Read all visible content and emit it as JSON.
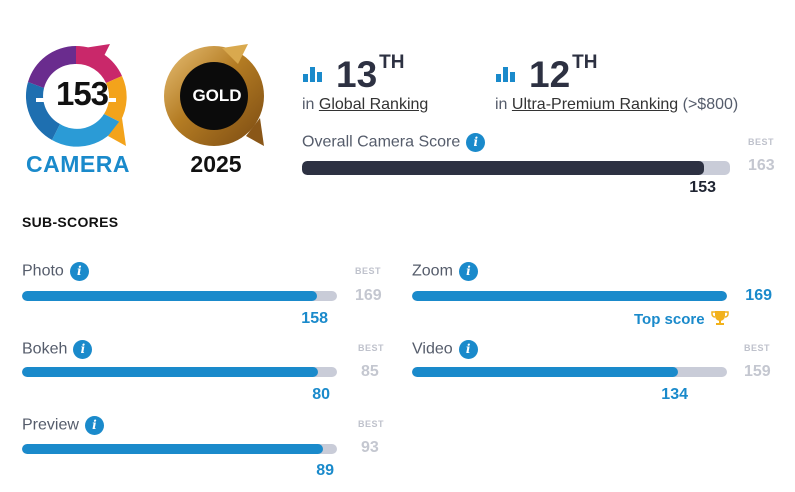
{
  "badge": {
    "camera_score": "153",
    "camera_label": "CAMERA",
    "award_label": "GOLD",
    "award_year": "2025"
  },
  "rankings": [
    {
      "number": "13",
      "suffix": "TH",
      "prefix": "in",
      "link": "Global Ranking",
      "extra": ""
    },
    {
      "number": "12",
      "suffix": "TH",
      "prefix": "in",
      "link": "Ultra-Premium Ranking",
      "extra": "(>$800)"
    }
  ],
  "overall": {
    "title": "Overall Camera Score",
    "best_label": "BEST",
    "best_value": "163",
    "score": "153",
    "fraction": 0.939
  },
  "subscores": {
    "title": "SUB-SCORES",
    "top_score_label": "Top score",
    "items": [
      {
        "name": "Photo",
        "score": "158",
        "best_label": "BEST",
        "best": "169",
        "fraction": 0.935
      },
      {
        "name": "Zoom",
        "score": "169",
        "best_label": "",
        "best": "",
        "fraction": 1.0
      },
      {
        "name": "Bokeh",
        "score": "80",
        "best_label": "BEST",
        "best": "85",
        "fraction": 0.941
      },
      {
        "name": "Video",
        "score": "134",
        "best_label": "BEST",
        "best": "159",
        "fraction": 0.843
      },
      {
        "name": "Preview",
        "score": "89",
        "best_label": "BEST",
        "best": "93",
        "fraction": 0.957
      }
    ]
  },
  "colors": {
    "accent": "#1a8acb",
    "overall_fill": "#2d3142",
    "track": "#c9ccd8",
    "gold": "#c8942f"
  }
}
